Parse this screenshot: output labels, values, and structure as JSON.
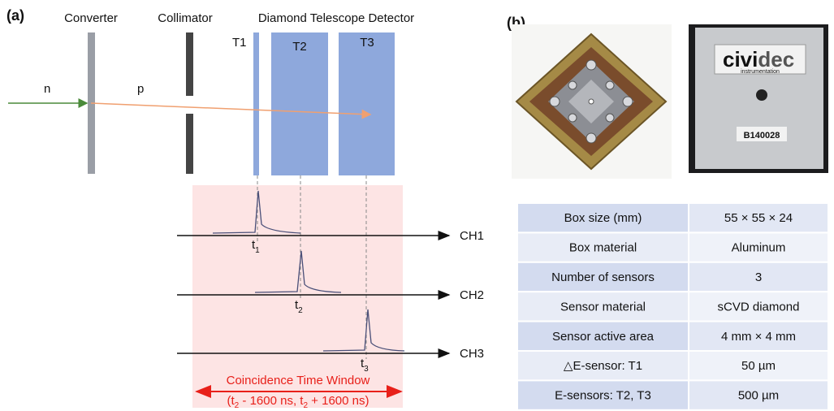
{
  "panel_a": {
    "label": "(a)",
    "headers": [
      "Converter",
      "Collimator",
      "Diamond Telescope Detector"
    ],
    "particles": [
      "n",
      "p"
    ],
    "detectors": [
      "T1",
      "T2",
      "T3"
    ],
    "channels": [
      "CH1",
      "CH2",
      "CH3"
    ],
    "times": [
      {
        "base": "t",
        "sub": "1"
      },
      {
        "base": "t",
        "sub": "2"
      },
      {
        "base": "t",
        "sub": "3"
      }
    ],
    "window": {
      "title": "Coincidence Time Window",
      "range": [
        "(t",
        "2",
        " - 1600 ns, t",
        "2",
        " + 1600 ns)"
      ]
    }
  },
  "panel_b": {
    "label": "(b)",
    "photo_text": {
      "brand_1": "civi",
      "brand_2": "dec",
      "tagline": "instrumentation",
      "serial": "B140028"
    },
    "table": {
      "rows": [
        [
          "Box size (mm)",
          "55 × 55 × 24"
        ],
        [
          "Box material",
          "Aluminum"
        ],
        [
          "Number of sensors",
          "3"
        ],
        [
          "Sensor material",
          "sCVD diamond"
        ],
        [
          "Sensor active area",
          "4 mm × 4 mm"
        ],
        [
          "△E-sensor: T1",
          "50 µm"
        ],
        [
          "E-sensors: T2, T3",
          "500 µm"
        ]
      ]
    }
  }
}
